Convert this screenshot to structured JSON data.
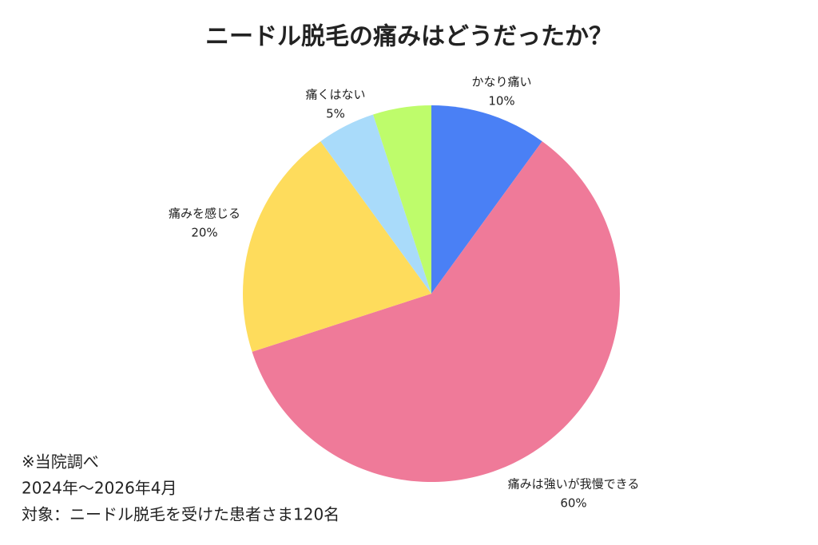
{
  "chart_data": {
    "type": "pie",
    "title": "ニードル脱毛の痛みはどうだったか？",
    "categories": [
      "かなり痛い",
      "痛みは強いが我慢できる",
      "痛みを感じる",
      "痛くはない",
      ""
    ],
    "values": [
      10,
      60,
      20,
      5,
      5
    ],
    "value_labels": [
      "10%",
      "60%",
      "20%",
      "5%",
      ""
    ],
    "colors": [
      "#4a80f5",
      "#ef7a99",
      "#fedc5c",
      "#a9dbfa",
      "#befc6b"
    ],
    "notes": [
      "※当院調べ",
      "2024年〜2026年4月",
      "対象：ニードル脱毛を受けた患者さま120名"
    ]
  }
}
